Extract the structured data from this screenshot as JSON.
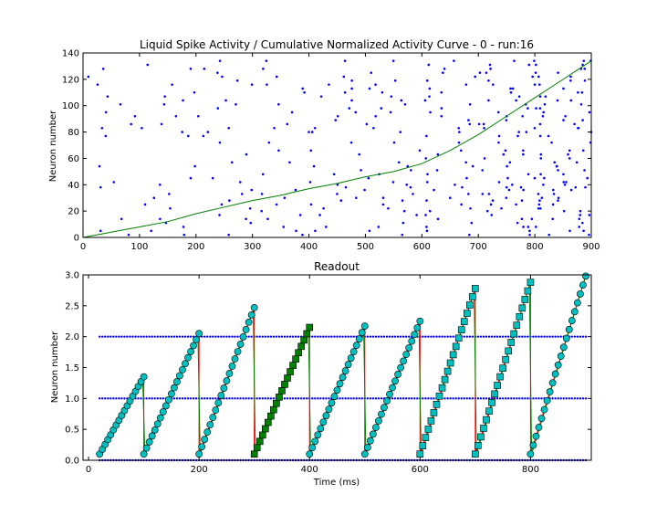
{
  "chart_data": [
    {
      "type": "scatter",
      "title": "Liquid Spike Activity / Cumulative Normalized Activity Curve - 0 - run:16",
      "xlabel": "",
      "ylabel": "Neuron number",
      "xlim": [
        0,
        900
      ],
      "ylim": [
        0,
        140
      ],
      "xticks": [
        "0",
        "100",
        "200",
        "300",
        "400",
        "500",
        "600",
        "700",
        "800",
        "900"
      ],
      "yticks": [
        "0",
        "20",
        "40",
        "60",
        "80",
        "100",
        "120",
        "140"
      ],
      "grid": false,
      "colors": {
        "spikes": "#0000ff",
        "curve": "#008000"
      },
      "series": [
        {
          "kind": "spike-raster",
          "style": "blue dots",
          "seed": 16,
          "rows": [
            2,
            5,
            8,
            11,
            14,
            17,
            20,
            22,
            25,
            28,
            30,
            33,
            36,
            38,
            40,
            42,
            45,
            48,
            51,
            54,
            57,
            60,
            63,
            66,
            72,
            77,
            80,
            83,
            86,
            89,
            92,
            95,
            98,
            101,
            104,
            107,
            110,
            113,
            116,
            119,
            122,
            125,
            128,
            131,
            134
          ],
          "rate_breakpoints": {
            "x": [
              0,
              100,
              200,
              300,
              400,
              500,
              600,
              700,
              800,
              900
            ],
            "spikes_per_row_per_100ms": [
              0.4,
              0.5,
              0.55,
              0.55,
              0.65,
              0.75,
              1.0,
              1.5,
              1.9,
              2.2
            ]
          }
        },
        {
          "kind": "cumulative-curve",
          "style": "green line",
          "x": [
            0,
            50,
            100,
            150,
            200,
            250,
            300,
            350,
            400,
            450,
            500,
            550,
            600,
            650,
            700,
            750,
            800,
            850,
            900
          ],
          "y": [
            0,
            4,
            8,
            12,
            18,
            23,
            28,
            32,
            37,
            41,
            46,
            50,
            56,
            66,
            78,
            92,
            106,
            120,
            134
          ]
        }
      ]
    },
    {
      "type": "line",
      "title": "Readout",
      "xlabel": "Time (ms)",
      "ylabel": "Neuron number",
      "xlim": [
        -10,
        910
      ],
      "ylim": [
        0.0,
        3.0
      ],
      "xticks": [
        "0",
        "200",
        "400",
        "600",
        "800"
      ],
      "yticks": [
        "0.0",
        "0.5",
        "1.0",
        "1.5",
        "2.0",
        "2.5",
        "3.0"
      ],
      "grid": false,
      "colors": {
        "dots": "#0000ff",
        "teal": "#00bfbf",
        "darkgreen": "#008000",
        "red": "#ff0000"
      },
      "series": [
        {
          "kind": "hline-dots",
          "y": 0.0,
          "from": 20,
          "to": 900
        },
        {
          "kind": "hline-dots",
          "y": 1.0,
          "from": 20,
          "to": 900
        },
        {
          "kind": "hline-dots",
          "y": 2.0,
          "from": 20,
          "to": 900
        },
        {
          "kind": "ramps",
          "segments": [
            {
              "x0": 20,
              "x1": 100,
              "y0": 0.1,
              "y1": 1.35,
              "marker": "circle",
              "color": "#00bfbf"
            },
            {
              "x0": 100,
              "x1": 200,
              "y0": 0.1,
              "y1": 2.05,
              "marker": "circle",
              "color": "#00bfbf"
            },
            {
              "x0": 200,
              "x1": 300,
              "y0": 0.1,
              "y1": 2.47,
              "marker": "circle",
              "color": "#00bfbf"
            },
            {
              "x0": 300,
              "x1": 400,
              "y0": 0.1,
              "y1": 2.15,
              "marker": "square",
              "color": "#008000"
            },
            {
              "x0": 400,
              "x1": 500,
              "y0": 0.1,
              "y1": 2.17,
              "marker": "circle",
              "color": "#00bfbf"
            },
            {
              "x0": 500,
              "x1": 600,
              "y0": 0.1,
              "y1": 2.25,
              "marker": "circle",
              "color": "#00bfbf"
            },
            {
              "x0": 600,
              "x1": 700,
              "y0": 0.1,
              "y1": 2.78,
              "marker": "square",
              "color": "#00bfbf"
            },
            {
              "x0": 700,
              "x1": 800,
              "y0": 0.1,
              "y1": 2.88,
              "marker": "square",
              "color": "#00bfbf"
            },
            {
              "x0": 800,
              "x1": 900,
              "y0": 0.1,
              "y1": 2.98,
              "marker": "circle",
              "color": "#00bfbf"
            }
          ]
        }
      ]
    }
  ]
}
